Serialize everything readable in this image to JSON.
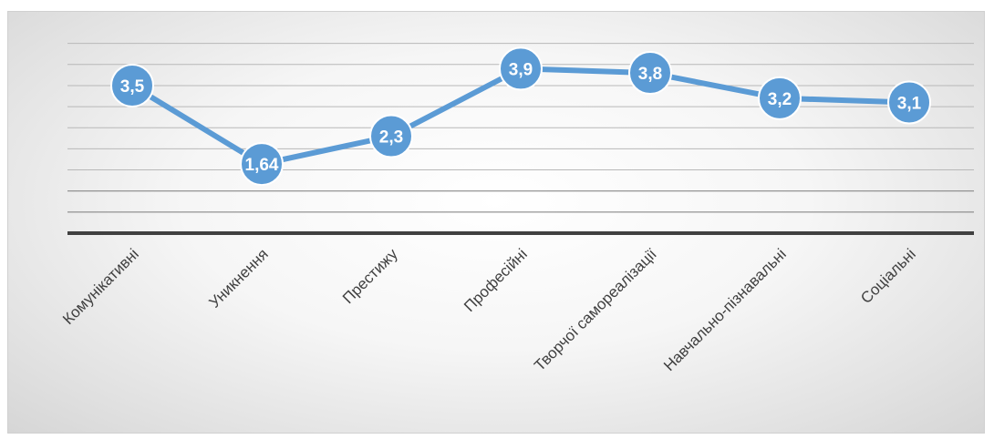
{
  "chart_data": {
    "type": "line",
    "categories": [
      "Комунікативні",
      "Уникнення",
      "Престижу",
      "Професійні",
      "Творчої самореалізації",
      "Навчально-пізнавальні",
      "Соціальні"
    ],
    "values": [
      3.5,
      1.64,
      2.3,
      3.9,
      3.8,
      3.2,
      3.1
    ],
    "data_labels": [
      "3,5",
      "1,64",
      "2,3",
      "3,9",
      "3,8",
      "3,2",
      "3,1"
    ],
    "ylim": [
      0,
      4.5
    ],
    "grid": true,
    "legend": "none",
    "colors": {
      "series": "#5b9bd5",
      "marker_border": "#ffffff",
      "axis": "#404040"
    }
  }
}
